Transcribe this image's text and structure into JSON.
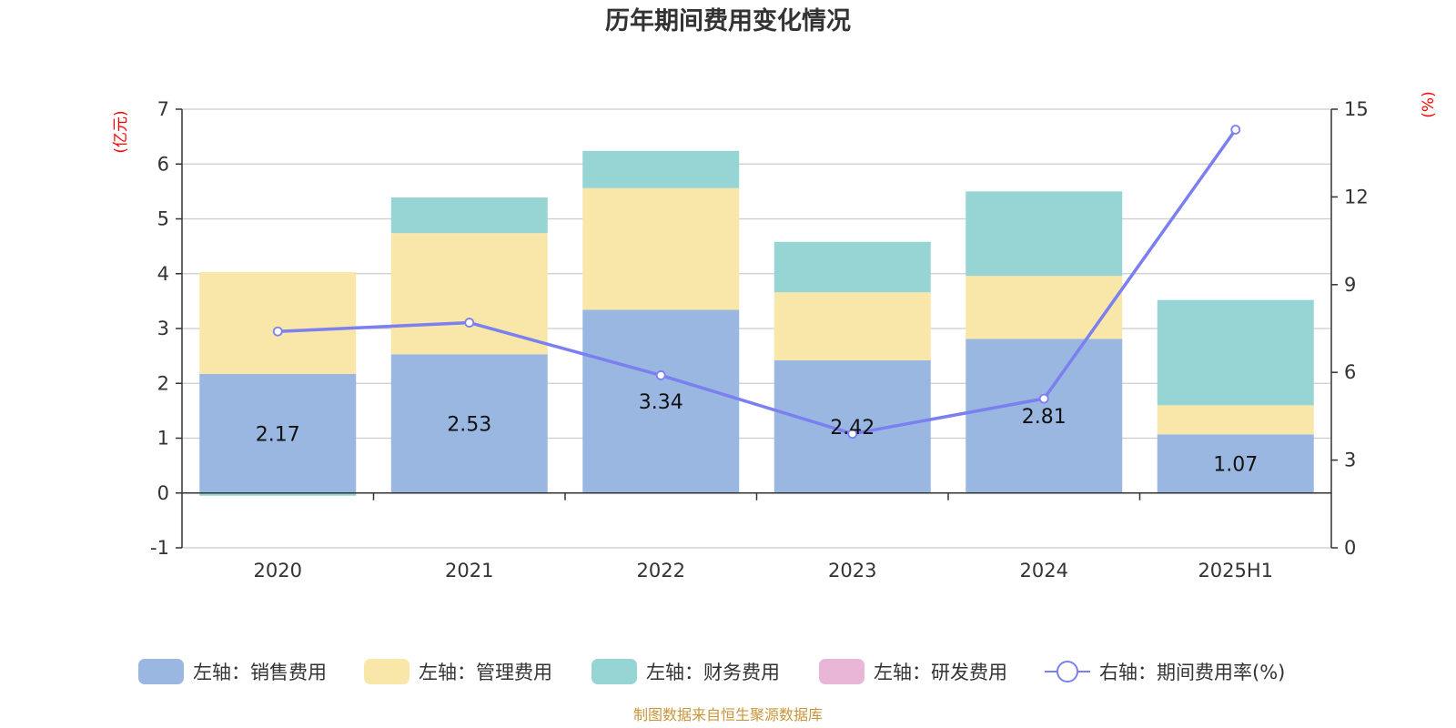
{
  "chart_data": {
    "type": "bar",
    "title": "历年期间费用变化情况",
    "categories": [
      "2020",
      "2021",
      "2022",
      "2023",
      "2024",
      "2025H1"
    ],
    "left_axis": {
      "unit": "(亿元)",
      "ylim": [
        -1,
        7
      ],
      "ticks": [
        "-1",
        "0",
        "1",
        "2",
        "3",
        "4",
        "5",
        "6",
        "7"
      ]
    },
    "right_axis": {
      "unit": "(%)",
      "ylim": [
        0,
        15
      ],
      "ticks": [
        "0",
        "3",
        "6",
        "9",
        "12",
        "15"
      ]
    },
    "grid": true,
    "stacked": true,
    "series": [
      {
        "name": "左轴：销售费用",
        "axis": "left",
        "kind": "bar",
        "color": "#9ab7e1",
        "values": [
          2.17,
          2.53,
          3.34,
          2.42,
          2.81,
          1.07
        ],
        "labels": [
          "2.17",
          "2.53",
          "3.34",
          "2.42",
          "2.81",
          "1.07"
        ]
      },
      {
        "name": "左轴：管理费用",
        "axis": "left",
        "kind": "bar",
        "color": "#f8e7a9",
        "values": [
          1.86,
          2.21,
          2.22,
          1.24,
          1.15,
          0.53
        ]
      },
      {
        "name": "左轴：财务费用",
        "axis": "left",
        "kind": "bar",
        "color": "#97d4d4",
        "values": [
          -0.05,
          0.65,
          0.68,
          0.92,
          1.54,
          1.92
        ]
      },
      {
        "name": "左轴：研发费用",
        "axis": "left",
        "kind": "bar",
        "color": "#e8b7d8",
        "values": [
          0,
          0,
          0,
          0,
          0,
          0
        ]
      },
      {
        "name": "右轴：期间费用率(%)",
        "axis": "right",
        "kind": "line",
        "color": "#7b7fef",
        "values": [
          7.4,
          7.7,
          5.9,
          3.9,
          5.1,
          14.3
        ]
      }
    ],
    "legend_position": "bottom",
    "source": "制图数据来自恒生聚源数据库"
  }
}
